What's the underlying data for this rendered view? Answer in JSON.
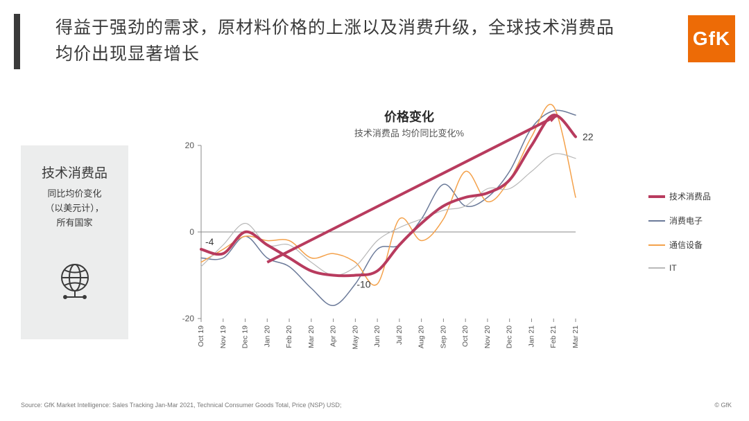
{
  "title": "得益于强劲的需求，原材料价格的上涨以及消费升级，全球技术消费品均价出现显著增长",
  "logo": "GfK",
  "sidebox": {
    "heading": "技术消费品",
    "line1": "同比均价变化",
    "line2": "（以美元计），",
    "line3": "所有国家"
  },
  "chart": {
    "title": "价格变化",
    "subtitle": "技术消费品 均价同比变化%",
    "type": "line",
    "ylim": [
      -20,
      20
    ],
    "yticks": [
      -20,
      0,
      20
    ],
    "x_labels": [
      "Oct 19",
      "Nov 19",
      "Dec 19",
      "Jan 20",
      "Feb 20",
      "Mar 20",
      "Apr 20",
      "May 20",
      "Jun 20",
      "Jul 20",
      "Aug 20",
      "Sep 20",
      "Oct 20",
      "Nov 20",
      "Dec 20",
      "Jan 21",
      "Feb 21",
      "Mar 21"
    ],
    "x_label_rotation": -90,
    "background_color": "#ffffff",
    "axis_color": "#888888",
    "grid": false,
    "start_label": "-4",
    "mid_label": "-10",
    "end_label": "22",
    "label_fontsize": 14,
    "arrow": {
      "color": "#b83b5e",
      "from": [
        3,
        -7
      ],
      "to": [
        16.2,
        27
      ],
      "width": 4
    },
    "series": [
      {
        "name": "技术消费品",
        "color": "#b83b5e",
        "width": 4,
        "bold": true,
        "values": [
          -4,
          -5,
          0,
          -3,
          -6,
          -9,
          -10,
          -10,
          -9,
          -3,
          2,
          6,
          8,
          9,
          12,
          20,
          27,
          22
        ]
      },
      {
        "name": "消费电子",
        "color": "#6b7a99",
        "width": 1.5,
        "values": [
          -6,
          -6,
          -1,
          -6,
          -8,
          -13,
          -17,
          -12,
          -4,
          -3,
          3,
          11,
          6,
          8,
          14,
          24,
          28,
          27
        ]
      },
      {
        "name": "通信设备",
        "color": "#f4a14a",
        "width": 1.5,
        "values": [
          -7,
          -4,
          -1,
          -2,
          -2,
          -6,
          -5,
          -7,
          -12,
          3,
          -2,
          3,
          14,
          7,
          12,
          22,
          29,
          8
        ]
      },
      {
        "name": "IT",
        "color": "#b8b8b8",
        "width": 1.2,
        "values": [
          -8,
          -3,
          2,
          -3,
          -3,
          -7,
          -10,
          -8,
          -2,
          1,
          3,
          5,
          6,
          10,
          10,
          14,
          18,
          17
        ]
      }
    ]
  },
  "legend_labels": {
    "s0": "技术消费品",
    "s1": "消费电子",
    "s2": "通信设备",
    "s3": "IT"
  },
  "footer": {
    "left": "Source: GfK Market Intelligence: Sales Tracking Jan-Mar 2021, Technical Consumer Goods Total, Price (NSP) USD;",
    "right": "© GfK"
  }
}
